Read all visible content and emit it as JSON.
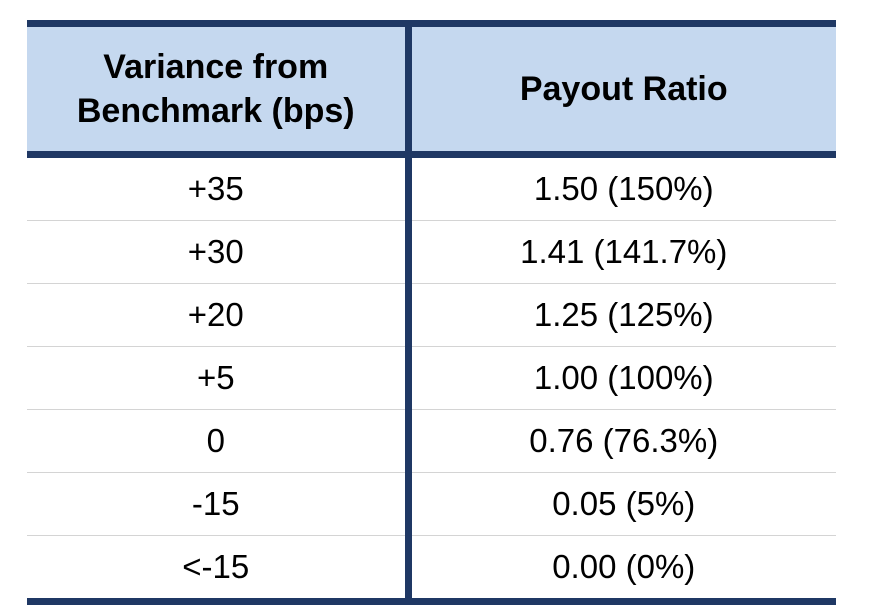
{
  "table": {
    "headers": {
      "variance_line1": "Variance from",
      "variance_line2": "Benchmark (bps)",
      "payout": "Payout Ratio"
    },
    "rows": [
      {
        "variance": "+35",
        "payout": "1.50 (150%)"
      },
      {
        "variance": "+30",
        "payout": "1.41 (141.7%)"
      },
      {
        "variance": "+20",
        "payout": "1.25 (125%)"
      },
      {
        "variance": "+5",
        "payout": "1.00 (100%)"
      },
      {
        "variance": "0",
        "payout": "0.76 (76.3%)"
      },
      {
        "variance": "-15",
        "payout": "0.05 (5%)"
      },
      {
        "variance": "<-15",
        "payout": "0.00 (0%)"
      }
    ]
  },
  "colors": {
    "header_background": "#c5d8ef",
    "border_navy": "#1f3864",
    "row_divider": "#d4d4d4"
  }
}
